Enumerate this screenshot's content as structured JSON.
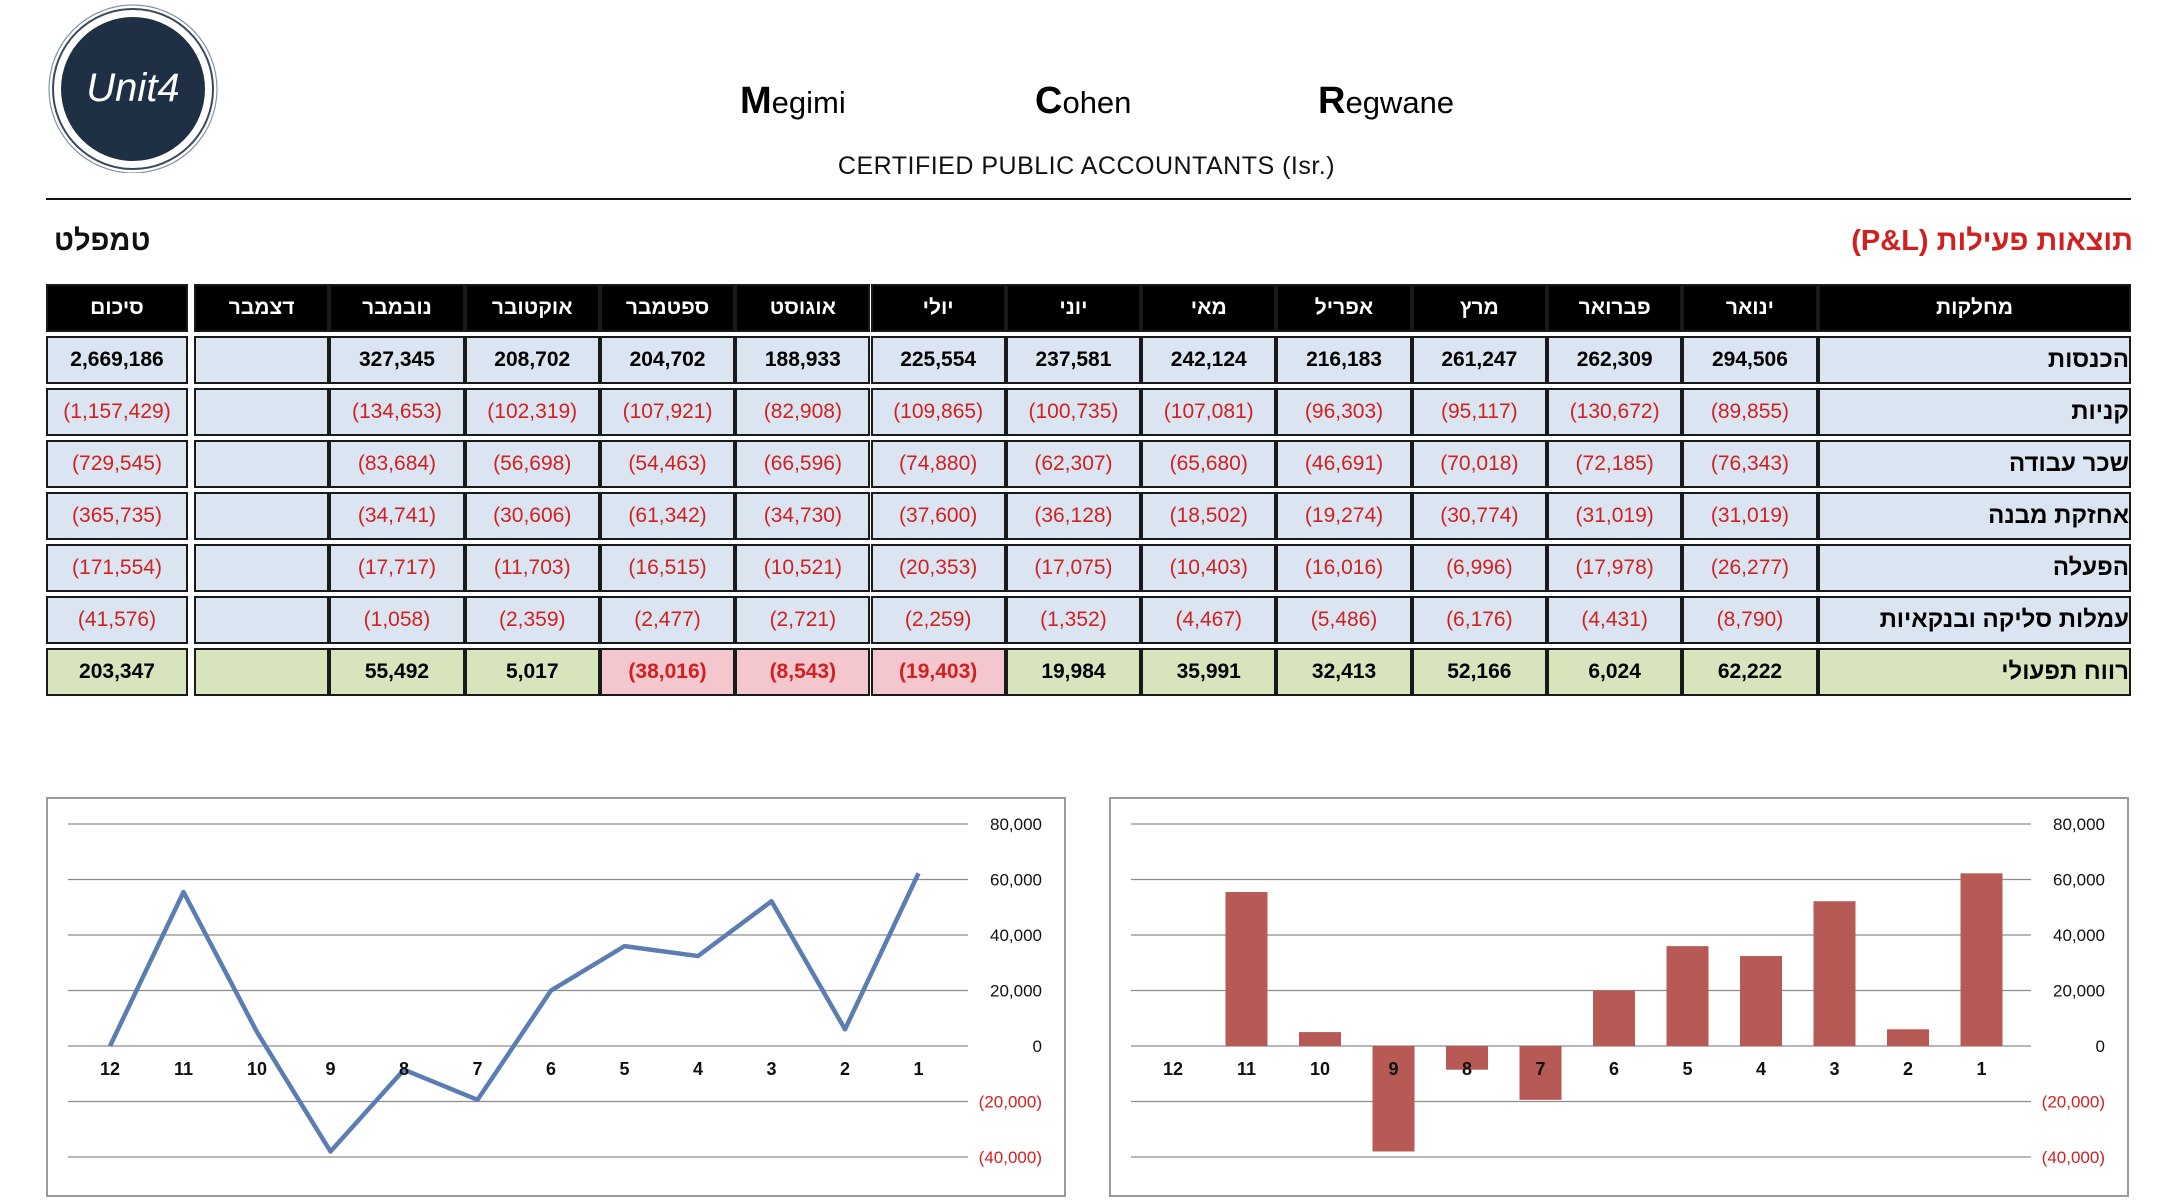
{
  "header": {
    "firm_words": [
      "Megimi",
      "Cohen",
      "Regwane"
    ],
    "subtitle": "CERTIFIED PUBLIC ACCOUNTANTS (Isr.)",
    "logo_text": "Unit4"
  },
  "titles": {
    "left": "טמפלט",
    "right": "תוצאות פעילות (P&L)"
  },
  "table": {
    "label_header": "מחלקות",
    "total_header": "סיכום",
    "months": [
      "ינואר",
      "פברואר",
      "מרץ",
      "אפריל",
      "מאי",
      "יוני",
      "יולי",
      "אוגוסט",
      "ספטמבר",
      "אוקטובר",
      "נובמבר",
      "דצמבר"
    ],
    "rows": [
      {
        "label": "הכנסות",
        "style": "blue",
        "total": "2,669,186",
        "values": [
          "294,506",
          "262,309",
          "261,247",
          "216,183",
          "242,124",
          "237,581",
          "225,554",
          "188,933",
          "204,702",
          "208,702",
          "327,345",
          ""
        ]
      },
      {
        "label": "קניות",
        "style": "blue",
        "total": "(1,157,429)",
        "values": [
          "(89,855)",
          "(130,672)",
          "(95,117)",
          "(96,303)",
          "(107,081)",
          "(100,735)",
          "(109,865)",
          "(82,908)",
          "(107,921)",
          "(102,319)",
          "(134,653)",
          ""
        ]
      },
      {
        "label": "שכר עבודה",
        "style": "blue",
        "total": "(729,545)",
        "values": [
          "(76,343)",
          "(72,185)",
          "(70,018)",
          "(46,691)",
          "(65,680)",
          "(62,307)",
          "(74,880)",
          "(66,596)",
          "(54,463)",
          "(56,698)",
          "(83,684)",
          ""
        ]
      },
      {
        "label": "אחזקת מבנה",
        "style": "blue",
        "total": "(365,735)",
        "values": [
          "(31,019)",
          "(31,019)",
          "(30,774)",
          "(19,274)",
          "(18,502)",
          "(36,128)",
          "(37,600)",
          "(34,730)",
          "(61,342)",
          "(30,606)",
          "(34,741)",
          ""
        ]
      },
      {
        "label": "הפעלה",
        "style": "blue",
        "total": "(171,554)",
        "values": [
          "(26,277)",
          "(17,978)",
          "(6,996)",
          "(16,016)",
          "(10,403)",
          "(17,075)",
          "(20,353)",
          "(10,521)",
          "(16,515)",
          "(11,703)",
          "(17,717)",
          ""
        ]
      },
      {
        "label": "עמלות סליקה ובנקאיות",
        "style": "blue",
        "total": "(41,576)",
        "values": [
          "(8,790)",
          "(4,431)",
          "(6,176)",
          "(5,486)",
          "(4,467)",
          "(1,352)",
          "(2,259)",
          "(2,721)",
          "(2,477)",
          "(2,359)",
          "(1,058)",
          ""
        ]
      },
      {
        "label": "רווח תפעולי",
        "style": "green",
        "total": "203,347",
        "values": [
          "62,222",
          "6,024",
          "52,166",
          "32,413",
          "35,991",
          "19,984",
          "(19,403)",
          "(8,543)",
          "(38,016)",
          "5,017",
          "55,492",
          ""
        ]
      }
    ]
  },
  "colors": {
    "header_bg": "#000000",
    "row_blue": "#dbe5f1",
    "row_green": "#d8e4bc",
    "row_pink": "#f4c6cd",
    "negative_text": "#d21f1f",
    "line_series": "#5b7db1",
    "bar_series": "#b75a55"
  },
  "chart_data": [
    {
      "type": "line",
      "categories": [
        "12",
        "11",
        "10",
        "9",
        "8",
        "7",
        "6",
        "5",
        "4",
        "3",
        "2",
        "1"
      ],
      "values": [
        0,
        55492,
        5017,
        -38016,
        -8543,
        -19403,
        19984,
        35991,
        32413,
        52166,
        6024,
        62222
      ],
      "ylim": [
        -40000,
        80000
      ],
      "yticks": [
        "80,000",
        "60,000",
        "40,000",
        "20,000",
        "0",
        "(20,000)",
        "(40,000)"
      ],
      "grid": true
    },
    {
      "type": "bar",
      "categories": [
        "12",
        "11",
        "10",
        "9",
        "8",
        "7",
        "6",
        "5",
        "4",
        "3",
        "2",
        "1"
      ],
      "values": [
        0,
        55492,
        5017,
        -38016,
        -8543,
        -19403,
        19984,
        35991,
        32413,
        52166,
        6024,
        62222
      ],
      "ylim": [
        -40000,
        80000
      ],
      "yticks": [
        "80,000",
        "60,000",
        "40,000",
        "20,000",
        "0",
        "(20,000)",
        "(40,000)"
      ],
      "grid": true
    }
  ]
}
